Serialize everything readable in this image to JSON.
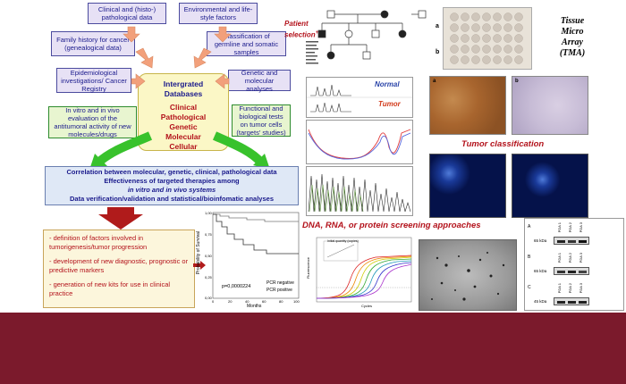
{
  "boxes": {
    "clinical": "Clinical and (histo-) pathological data",
    "environmental": "Environmental and life-style factors",
    "family": "Family history for cancer (genealogical data)",
    "classification": "Classification of germline and somatic samples",
    "epidemiological": "Epidemiological investigations/ Cancer Registry",
    "genetic": "Genetic and molecular analyses",
    "invitro": "In vitro and in vivo evaluation of the antitumoral activity of new molecules/drugs",
    "functional": "Functional and biological tests on tumor cells (targets' studies)"
  },
  "center": {
    "title1": "Intergrated",
    "title2": "Databases",
    "sub1": "Clinical",
    "sub2": "Pathological",
    "sub3": "Genetic",
    "sub4": "Molecular",
    "sub5": "Cellular"
  },
  "correlation": {
    "line1": "Correlation between molecular, genetic, clinical, pathological data",
    "line2": "Effectiveness of targeted therapies among",
    "line3": "in vitro and in vivo systems",
    "line4": "Data verification/validation and statistical/bioinfomatic analyses"
  },
  "outcomes": {
    "item1": "- definition of factors involved in tumorigenesis/tumor progression",
    "item2": "- development of new diagnostic, prognostic or predictive markers",
    "item3": "- generation of new kits for use in clinical practice"
  },
  "patient_selection": {
    "text": "Patient selection",
    "mark": "+"
  },
  "seq_labels": {
    "normal": "Normal",
    "tumor": "Tumor"
  },
  "tma": {
    "line1": "Tissue",
    "line2": "Micro",
    "line3": "Array",
    "line4": "(TMA)",
    "label_a": "a",
    "label_b": "b"
  },
  "ihc_labels": {
    "a": "a",
    "b": "b"
  },
  "tumor_classification": "Tumor classification",
  "screening": "DNA, RNA, or protein screening approaches",
  "survival_chart": {
    "ylabel": "Probability of Survival",
    "xlabel": "Months",
    "pvalue": "p=0,0000224",
    "legend1": "PCR negative",
    "legend2": "PCR positive",
    "yticks": [
      "1,00",
      "0,75",
      "0,50",
      "0,25",
      "0,00"
    ],
    "xticks": [
      "0",
      "20",
      "40",
      "60",
      "80",
      "100"
    ]
  },
  "pcr_chart": {
    "inset_title": "Initial quantity (copies)",
    "xlabel": "Cycles",
    "ylabel": "Fluorescence"
  },
  "western": {
    "row_labels": [
      "A",
      "B",
      "C"
    ],
    "kda": [
      "65 kDa",
      "65 kDa",
      "45 kDa"
    ],
    "lanes": [
      "PDA 1",
      "PDA 2",
      "PDA 3"
    ]
  },
  "colors": {
    "footer": "#7b1a2c",
    "accent_red": "#b3121b",
    "arrow_pink": "#f2a07b",
    "arrow_green": "#38c22c",
    "arrow_dark_red": "#b01b1b"
  }
}
